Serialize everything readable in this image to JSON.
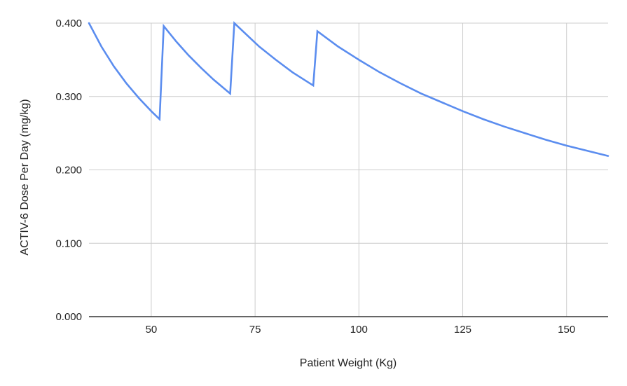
{
  "chart_data": {
    "type": "line",
    "title": "",
    "xlabel": "Patient Weight (Kg)",
    "ylabel": "ACTIV-6 Dose Per Day (mg/kg)",
    "xlim": [
      35,
      160
    ],
    "ylim": [
      0,
      0.4
    ],
    "x_ticks": [
      {
        "value": 50,
        "label": "50"
      },
      {
        "value": 75,
        "label": "75"
      },
      {
        "value": 100,
        "label": "100"
      },
      {
        "value": 125,
        "label": "125"
      },
      {
        "value": 150,
        "label": "150"
      }
    ],
    "y_ticks": [
      {
        "value": 0,
        "label": "0.000"
      },
      {
        "value": 0.1,
        "label": "0.100"
      },
      {
        "value": 0.2,
        "label": "0.200"
      },
      {
        "value": 0.3,
        "label": "0.300"
      },
      {
        "value": 0.4,
        "label": "0.400"
      }
    ],
    "grid": true,
    "legend": "none",
    "series": [
      {
        "color": "#5b8def",
        "points": [
          [
            35,
            0.4
          ],
          [
            38,
            0.368
          ],
          [
            41,
            0.341
          ],
          [
            44,
            0.318
          ],
          [
            47,
            0.298
          ],
          [
            50,
            0.28
          ],
          [
            52,
            0.269
          ],
          [
            53,
            0.396
          ],
          [
            56,
            0.375
          ],
          [
            59,
            0.356
          ],
          [
            62,
            0.339
          ],
          [
            65,
            0.323
          ],
          [
            69,
            0.304
          ],
          [
            70,
            0.4
          ],
          [
            73,
            0.384
          ],
          [
            76,
            0.368
          ],
          [
            80,
            0.35
          ],
          [
            84,
            0.333
          ],
          [
            89,
            0.315
          ],
          [
            90,
            0.389
          ],
          [
            95,
            0.368
          ],
          [
            100,
            0.35
          ],
          [
            105,
            0.333
          ],
          [
            110,
            0.318
          ],
          [
            115,
            0.304
          ],
          [
            120,
            0.292
          ],
          [
            125,
            0.28
          ],
          [
            130,
            0.269
          ],
          [
            135,
            0.259
          ],
          [
            140,
            0.25
          ],
          [
            145,
            0.241
          ],
          [
            150,
            0.233
          ],
          [
            155,
            0.226
          ],
          [
            160,
            0.219
          ]
        ]
      }
    ]
  }
}
